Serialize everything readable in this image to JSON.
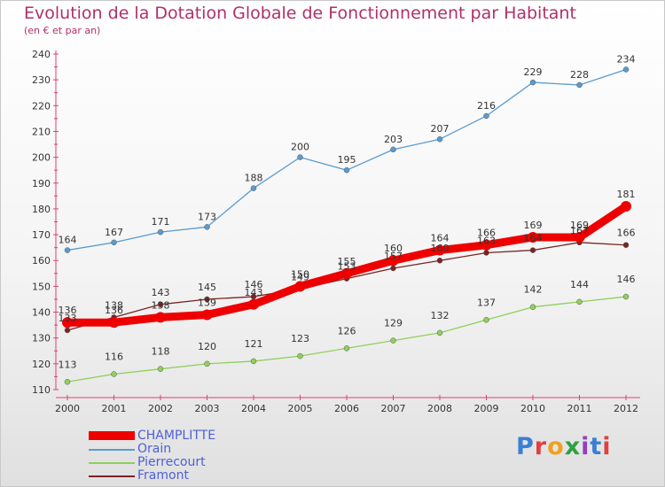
{
  "title": "Evolution de la Dotation Globale de Fonctionnement par Habitant",
  "subtitle": "(en € et par an)",
  "logo": {
    "text": "Proxiti",
    "colors": [
      "#3a7fd5",
      "#e04040",
      "#f0a020",
      "#30a040",
      "#9040c0",
      "#3a7fd5",
      "#e04040"
    ]
  },
  "chart_data": {
    "type": "line",
    "title": "Evolution de la Dotation Globale de Fonctionnement par Habitant",
    "subtitle": "(en € et par an)",
    "xlabel": "",
    "ylabel": "",
    "x": [
      "2000",
      "2001",
      "2002",
      "2003",
      "2004",
      "2005",
      "2006",
      "2007",
      "2008",
      "2009",
      "2010",
      "2011",
      "2012"
    ],
    "ylim": [
      110,
      240
    ],
    "yticks": [
      "110",
      "120",
      "130",
      "140",
      "150",
      "160",
      "170",
      "180",
      "190",
      "200",
      "210",
      "220",
      "230",
      "240"
    ],
    "grid": false,
    "legend_position": "bottom-left",
    "series": [
      {
        "name": "CHAMPLITTE",
        "color": "#ee0000",
        "values": [
          136,
          136,
          138,
          139,
          143,
          150,
          155,
          160,
          164,
          166,
          169,
          169,
          181
        ],
        "labels": [
          "136",
          "136",
          "138",
          "139",
          "143",
          "150",
          "155",
          "160",
          "164",
          "166",
          "169",
          "169",
          "181"
        ]
      },
      {
        "name": "Orain",
        "color": "#5a9bd0",
        "values": [
          164,
          167,
          171,
          173,
          188,
          200,
          195,
          203,
          207,
          216,
          229,
          228,
          234
        ],
        "labels": [
          "164",
          "167",
          "171",
          "173",
          "188",
          "200",
          "195",
          "203",
          "207",
          "216",
          "229",
          "228",
          "234"
        ]
      },
      {
        "name": "Pierrecourt",
        "color": "#8fd05a",
        "values": [
          113,
          116,
          118,
          120,
          121,
          123,
          126,
          129,
          132,
          137,
          142,
          144,
          146
        ],
        "labels": [
          "113",
          "116",
          "118",
          "120",
          "121",
          "123",
          "126",
          "129",
          "132",
          "137",
          "142",
          "144",
          "146"
        ]
      },
      {
        "name": "Framont",
        "color": "#7a2424",
        "values": [
          133,
          138,
          143,
          145,
          146,
          149,
          153,
          157,
          160,
          163,
          164,
          167,
          166
        ],
        "labels": [
          "133",
          "138",
          "143",
          "145",
          "146",
          "149",
          "153",
          "157",
          "160",
          "163",
          "164",
          "167",
          "166"
        ]
      }
    ]
  }
}
